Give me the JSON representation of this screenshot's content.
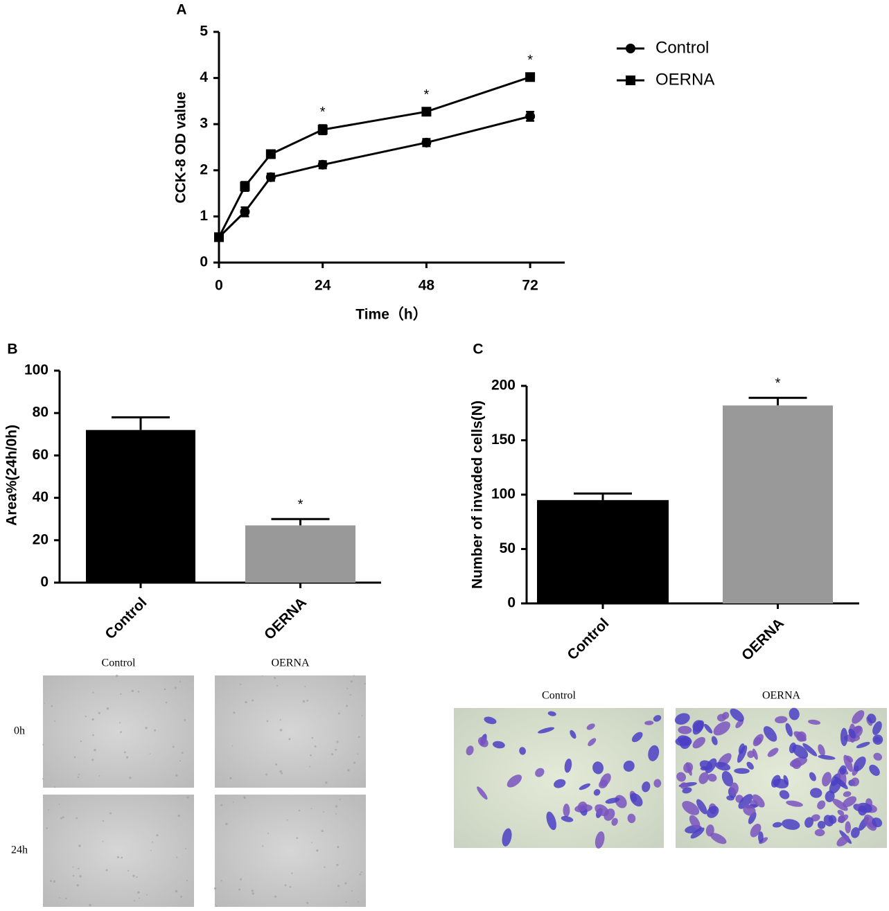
{
  "chart_data": [
    {
      "panel": "A",
      "type": "line",
      "x_label": "Time（h）",
      "y_label": "CCK-8 OD value",
      "x": [
        0,
        6,
        12,
        24,
        48,
        72
      ],
      "series": [
        {
          "name": "Control",
          "color": "#000000",
          "marker": "circle",
          "values": [
            0.55,
            1.1,
            1.85,
            2.12,
            2.6,
            3.17
          ],
          "errors": [
            0.08,
            0.1,
            0.08,
            0.08,
            0.08,
            0.1
          ]
        },
        {
          "name": "OERNA",
          "color": "#000000",
          "marker": "square",
          "values": [
            0.55,
            1.65,
            2.35,
            2.88,
            3.27,
            4.02
          ],
          "errors": [
            0.08,
            0.1,
            0.08,
            0.1,
            0.08,
            0.08
          ]
        }
      ],
      "annotations": [
        {
          "x": 24,
          "text": "*"
        },
        {
          "x": 48,
          "text": "*"
        },
        {
          "x": 72,
          "text": "*"
        }
      ],
      "xlim": [
        0,
        80
      ],
      "xticks": [
        0,
        24,
        48,
        72
      ],
      "ylim": [
        0,
        5
      ],
      "yticks": [
        0,
        1,
        2,
        3,
        4,
        5
      ],
      "legend": "right"
    },
    {
      "panel": "B",
      "type": "bar",
      "y_label": "Area%(24h/0h)",
      "categories": [
        "Control",
        "OERNA"
      ],
      "values": [
        72,
        27
      ],
      "errors": [
        6,
        3
      ],
      "colors": [
        "#000000",
        "#999999"
      ],
      "annotations": [
        {
          "x": "OERNA",
          "text": "*"
        }
      ],
      "ylim": [
        0,
        100
      ],
      "yticks": [
        0,
        20,
        40,
        60,
        80,
        100
      ]
    },
    {
      "panel": "C",
      "type": "bar",
      "y_label": "Number of invaded cells(N)",
      "categories": [
        "Control",
        "OERNA"
      ],
      "values": [
        95,
        182
      ],
      "errors": [
        6,
        7
      ],
      "colors": [
        "#000000",
        "#999999"
      ],
      "annotations": [
        {
          "x": "OERNA",
          "text": "*"
        }
      ],
      "ylim": [
        0,
        200
      ],
      "yticks": [
        0,
        50,
        100,
        150,
        200
      ]
    }
  ],
  "images": {
    "B": {
      "columns": [
        "Control",
        "OERNA"
      ],
      "rows": [
        "0h",
        "24h"
      ]
    },
    "C": {
      "columns": [
        "Control",
        "OERNA"
      ]
    }
  }
}
